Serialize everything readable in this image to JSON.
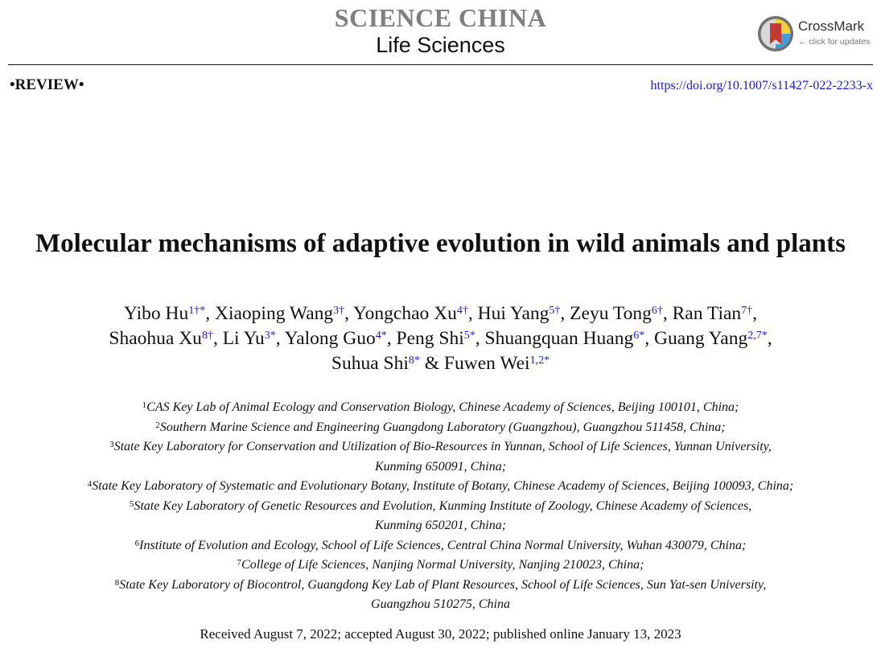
{
  "journal": {
    "name": "SCIENCE CHINA",
    "subject": "Life Sciences"
  },
  "crossmark": {
    "title": "CrossMark",
    "subtitle": "click for updates",
    "arrow": "←"
  },
  "article_type": "REVIEW",
  "doi": "https://doi.org/10.1007/s11427-022-2233-x",
  "title": "Molecular mechanisms of adaptive evolution in wild animals and plants",
  "authors": [
    {
      "name": "Yibo Hu",
      "sup": "1†*"
    },
    {
      "name": "Xiaoping Wang",
      "sup": "3†"
    },
    {
      "name": "Yongchao Xu",
      "sup": "4†"
    },
    {
      "name": "Hui Yang",
      "sup": "5†"
    },
    {
      "name": "Zeyu Tong",
      "sup": "6†"
    },
    {
      "name": "Ran Tian",
      "sup": "7†"
    },
    {
      "name": "Shaohua Xu",
      "sup": "8†"
    },
    {
      "name": "Li Yu",
      "sup": "3*"
    },
    {
      "name": "Yalong Guo",
      "sup": "4*"
    },
    {
      "name": "Peng Shi",
      "sup": "5*"
    },
    {
      "name": "Shuangquan Huang",
      "sup": "6*"
    },
    {
      "name": "Guang Yang",
      "sup": "2,7*"
    },
    {
      "name": "Suhua Shi",
      "sup": "8*"
    },
    {
      "name": "Fuwen Wei",
      "sup": "1,2*"
    }
  ],
  "affiliations": [
    {
      "num": "1",
      "text": "CAS Key Lab of Animal Ecology and Conservation Biology, Chinese Academy of Sciences, Beijing 100101, China;"
    },
    {
      "num": "2",
      "text": "Southern Marine Science and Engineering Guangdong Laboratory (Guangzhou), Guangzhou 511458, China;"
    },
    {
      "num": "3",
      "text": "State Key Laboratory for Conservation and Utilization of Bio-Resources in Yunnan, School of Life Sciences, Yunnan University,",
      "cont": "Kunming 650091, China;"
    },
    {
      "num": "4",
      "text": "State Key Laboratory of Systematic and Evolutionary Botany, Institute of Botany, Chinese Academy of Sciences, Beijing 100093, China;"
    },
    {
      "num": "5",
      "text": "State Key Laboratory of Genetic Resources and Evolution, Kunming Institute of Zoology, Chinese Academy of Sciences,",
      "cont": "Kunming 650201, China;"
    },
    {
      "num": "6",
      "text": "Institute of Evolution and Ecology, School of Life Sciences, Central China Normal University, Wuhan 430079, China;"
    },
    {
      "num": "7",
      "text": "College of Life Sciences, Nanjing Normal University, Nanjing 210023, China;"
    },
    {
      "num": "8",
      "text": "State Key Laboratory of Biocontrol, Guangdong Key Lab of Plant Resources, School of Life Sciences, Sun Yat-sen University,",
      "cont": "Guangzhou 510275, China"
    }
  ],
  "dates": "Received August 7, 2022; accepted August 30, 2022; published online January 13, 2023",
  "colors": {
    "journal_gray": "#7f7f7f",
    "link_blue": "#1a1acd",
    "crossmark_red": "#d9443a"
  }
}
